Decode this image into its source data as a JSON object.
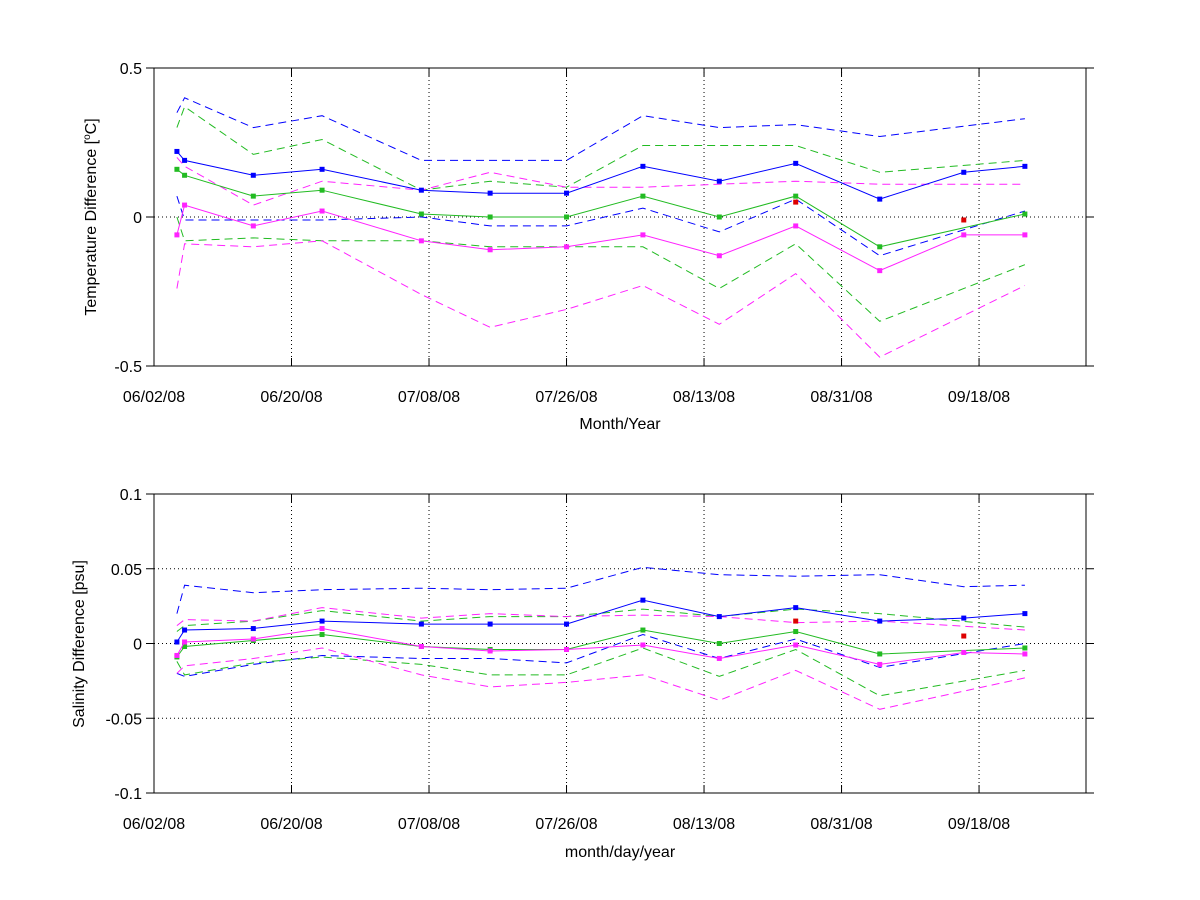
{
  "chart_data": [
    {
      "type": "line",
      "ylabel_main": "Temperature Difference [",
      "ylabel_sup": "o",
      "ylabel_tail": "C]",
      "xlabel": "Month/Year",
      "ylim": [
        -0.5,
        0.5
      ],
      "yticks": [
        -0.5,
        0,
        0.5
      ],
      "ytick_labels": [
        "-0.5",
        "0",
        "0.5"
      ],
      "xlim": [
        "2008-06-02",
        "2008-10-02"
      ],
      "xticks": [
        "2008-06-02",
        "2008-06-20",
        "2008-07-08",
        "2008-07-26",
        "2008-08-13",
        "2008-08-31",
        "2008-09-18"
      ],
      "xtick_labels": [
        "06/02/08",
        "06/20/08",
        "07/08/08",
        "07/26/08",
        "08/13/08",
        "08/31/08",
        "09/18/08"
      ],
      "grid": "dotted",
      "series": [
        {
          "style": "dashed",
          "color": "#0000ff",
          "x": [
            "2008-06-05",
            "2008-06-06",
            "2008-06-15",
            "2008-06-24",
            "2008-07-07",
            "2008-07-16",
            "2008-07-26",
            "2008-08-05",
            "2008-08-15",
            "2008-08-25",
            "2008-09-05",
            "2008-09-24"
          ],
          "y": [
            0.35,
            0.4,
            0.3,
            0.34,
            0.19,
            0.19,
            0.19,
            0.34,
            0.3,
            0.31,
            0.27,
            0.33
          ]
        },
        {
          "style": "dashed",
          "color": "#0000ff",
          "x": [
            "2008-06-05",
            "2008-06-06",
            "2008-06-15",
            "2008-06-24",
            "2008-07-07",
            "2008-07-16",
            "2008-07-26",
            "2008-08-05",
            "2008-08-15",
            "2008-08-25",
            "2008-09-05",
            "2008-09-24"
          ],
          "y": [
            0.07,
            -0.01,
            -0.01,
            -0.01,
            0.0,
            -0.03,
            -0.03,
            0.03,
            -0.05,
            0.06,
            -0.13,
            0.02
          ]
        },
        {
          "style": "dashed",
          "color": "#22bb22",
          "x": [
            "2008-06-05",
            "2008-06-06",
            "2008-06-15",
            "2008-06-24",
            "2008-07-07",
            "2008-07-16",
            "2008-07-26",
            "2008-08-05",
            "2008-08-15",
            "2008-08-25",
            "2008-09-05",
            "2008-09-24"
          ],
          "y": [
            0.3,
            0.37,
            0.21,
            0.26,
            0.09,
            0.12,
            0.1,
            0.24,
            0.24,
            0.24,
            0.15,
            0.19
          ]
        },
        {
          "style": "dashed",
          "color": "#22bb22",
          "x": [
            "2008-06-05",
            "2008-06-06",
            "2008-06-15",
            "2008-06-24",
            "2008-07-07",
            "2008-07-16",
            "2008-07-26",
            "2008-08-05",
            "2008-08-15",
            "2008-08-25",
            "2008-09-05",
            "2008-09-24"
          ],
          "y": [
            0.0,
            -0.08,
            -0.07,
            -0.08,
            -0.08,
            -0.1,
            -0.1,
            -0.1,
            -0.24,
            -0.09,
            -0.35,
            -0.16
          ]
        },
        {
          "style": "dashed",
          "color": "#ff22ff",
          "x": [
            "2008-06-05",
            "2008-06-06",
            "2008-06-15",
            "2008-06-24",
            "2008-07-07",
            "2008-07-16",
            "2008-07-26",
            "2008-08-05",
            "2008-08-15",
            "2008-08-25",
            "2008-09-05",
            "2008-09-24"
          ],
          "y": [
            0.2,
            0.17,
            0.04,
            0.12,
            0.09,
            0.15,
            0.1,
            0.1,
            0.11,
            0.12,
            0.11,
            0.11
          ]
        },
        {
          "style": "dashed",
          "color": "#ff22ff",
          "x": [
            "2008-06-05",
            "2008-06-06",
            "2008-06-15",
            "2008-06-24",
            "2008-07-07",
            "2008-07-16",
            "2008-07-26",
            "2008-08-05",
            "2008-08-15",
            "2008-08-25",
            "2008-09-05",
            "2008-09-24"
          ],
          "y": [
            -0.24,
            -0.09,
            -0.1,
            -0.08,
            -0.26,
            -0.37,
            -0.31,
            -0.23,
            -0.36,
            -0.19,
            -0.47,
            -0.23
          ]
        },
        {
          "style": "solid",
          "color": "#0000ff",
          "markers": true,
          "x": [
            "2008-06-05",
            "2008-06-06",
            "2008-06-15",
            "2008-06-24",
            "2008-07-07",
            "2008-07-16",
            "2008-07-26",
            "2008-08-05",
            "2008-08-15",
            "2008-08-25",
            "2008-09-05",
            "2008-09-16",
            "2008-09-24"
          ],
          "y": [
            0.22,
            0.19,
            0.14,
            0.16,
            0.09,
            0.08,
            0.08,
            0.17,
            0.12,
            0.18,
            0.06,
            0.15,
            0.17
          ]
        },
        {
          "style": "solid",
          "color": "#22bb22",
          "markers": true,
          "x": [
            "2008-06-05",
            "2008-06-06",
            "2008-06-15",
            "2008-06-24",
            "2008-07-07",
            "2008-07-16",
            "2008-07-26",
            "2008-08-05",
            "2008-08-15",
            "2008-08-25",
            "2008-09-05",
            "2008-09-24"
          ],
          "y": [
            0.16,
            0.14,
            0.07,
            0.09,
            0.01,
            0.0,
            0.0,
            0.07,
            0.0,
            0.07,
            -0.1,
            0.01
          ]
        },
        {
          "style": "solid",
          "color": "#ff22ff",
          "markers": true,
          "x": [
            "2008-06-05",
            "2008-06-06",
            "2008-06-15",
            "2008-06-24",
            "2008-07-07",
            "2008-07-16",
            "2008-07-26",
            "2008-08-05",
            "2008-08-15",
            "2008-08-25",
            "2008-09-05",
            "2008-09-16",
            "2008-09-24"
          ],
          "y": [
            -0.06,
            0.04,
            -0.03,
            0.02,
            -0.08,
            -0.11,
            -0.1,
            -0.06,
            -0.13,
            -0.03,
            -0.18,
            -0.06,
            -0.06
          ]
        },
        {
          "style": "markers",
          "color": "#dd0000",
          "x": [
            "2008-08-25",
            "2008-09-16"
          ],
          "y": [
            0.05,
            -0.01
          ]
        }
      ]
    },
    {
      "type": "line",
      "ylabel": "Salinity Difference [psu]",
      "xlabel": "month/day/year",
      "ylim": [
        -0.1,
        0.1
      ],
      "yticks": [
        -0.1,
        -0.05,
        0,
        0.05,
        0.1
      ],
      "ytick_labels": [
        "-0.1",
        "-0.05",
        "0",
        "0.05",
        "0.1"
      ],
      "xlim": [
        "2008-06-02",
        "2008-10-02"
      ],
      "xticks": [
        "2008-06-02",
        "2008-06-20",
        "2008-07-08",
        "2008-07-26",
        "2008-08-13",
        "2008-08-31",
        "2008-09-18"
      ],
      "xtick_labels": [
        "06/02/08",
        "06/20/08",
        "07/08/08",
        "07/26/08",
        "08/13/08",
        "08/31/08",
        "09/18/08"
      ],
      "grid": "dotted",
      "series": [
        {
          "style": "dashed",
          "color": "#0000ff",
          "x": [
            "2008-06-05",
            "2008-06-06",
            "2008-06-15",
            "2008-06-24",
            "2008-07-07",
            "2008-07-16",
            "2008-07-26",
            "2008-08-05",
            "2008-08-15",
            "2008-08-25",
            "2008-09-05",
            "2008-09-16",
            "2008-09-24"
          ],
          "y": [
            0.02,
            0.039,
            0.034,
            0.036,
            0.037,
            0.036,
            0.037,
            0.051,
            0.046,
            0.045,
            0.046,
            0.038,
            0.039
          ]
        },
        {
          "style": "dashed",
          "color": "#0000ff",
          "x": [
            "2008-06-05",
            "2008-06-06",
            "2008-06-15",
            "2008-06-24",
            "2008-07-07",
            "2008-07-16",
            "2008-07-26",
            "2008-08-05",
            "2008-08-15",
            "2008-08-25",
            "2008-09-05",
            "2008-09-24"
          ],
          "y": [
            -0.02,
            -0.022,
            -0.014,
            -0.008,
            -0.01,
            -0.01,
            -0.013,
            0.006,
            -0.01,
            0.003,
            -0.016,
            0.0
          ]
        },
        {
          "style": "dashed",
          "color": "#22bb22",
          "x": [
            "2008-06-05",
            "2008-06-06",
            "2008-06-15",
            "2008-06-24",
            "2008-07-07",
            "2008-07-16",
            "2008-07-26",
            "2008-08-05",
            "2008-08-15",
            "2008-08-25",
            "2008-09-05",
            "2008-09-24"
          ],
          "y": [
            0.008,
            0.012,
            0.015,
            0.022,
            0.015,
            0.018,
            0.018,
            0.023,
            0.018,
            0.023,
            0.02,
            0.011
          ]
        },
        {
          "style": "dashed",
          "color": "#22bb22",
          "x": [
            "2008-06-05",
            "2008-06-06",
            "2008-06-15",
            "2008-06-24",
            "2008-07-07",
            "2008-07-16",
            "2008-07-26",
            "2008-08-05",
            "2008-08-15",
            "2008-08-25",
            "2008-09-05",
            "2008-09-24"
          ],
          "y": [
            -0.012,
            -0.021,
            -0.013,
            -0.009,
            -0.014,
            -0.021,
            -0.021,
            -0.003,
            -0.022,
            -0.004,
            -0.035,
            -0.018
          ]
        },
        {
          "style": "dashed",
          "color": "#ff22ff",
          "x": [
            "2008-06-05",
            "2008-06-06",
            "2008-06-15",
            "2008-06-24",
            "2008-07-07",
            "2008-07-16",
            "2008-07-26",
            "2008-08-05",
            "2008-08-15",
            "2008-08-25",
            "2008-09-05",
            "2008-09-24"
          ],
          "y": [
            0.012,
            0.016,
            0.015,
            0.024,
            0.017,
            0.02,
            0.018,
            0.019,
            0.018,
            0.014,
            0.015,
            0.009
          ]
        },
        {
          "style": "dashed",
          "color": "#ff22ff",
          "x": [
            "2008-06-05",
            "2008-06-06",
            "2008-06-15",
            "2008-06-24",
            "2008-07-07",
            "2008-07-16",
            "2008-07-26",
            "2008-08-05",
            "2008-08-15",
            "2008-08-25",
            "2008-09-05",
            "2008-09-24"
          ],
          "y": [
            -0.02,
            -0.015,
            -0.01,
            -0.003,
            -0.021,
            -0.029,
            -0.026,
            -0.021,
            -0.038,
            -0.018,
            -0.044,
            -0.023
          ]
        },
        {
          "style": "solid",
          "color": "#0000ff",
          "markers": true,
          "x": [
            "2008-06-05",
            "2008-06-06",
            "2008-06-15",
            "2008-06-24",
            "2008-07-07",
            "2008-07-16",
            "2008-07-26",
            "2008-08-05",
            "2008-08-15",
            "2008-08-25",
            "2008-09-05",
            "2008-09-16",
            "2008-09-24"
          ],
          "y": [
            0.001,
            0.009,
            0.01,
            0.015,
            0.013,
            0.013,
            0.013,
            0.029,
            0.018,
            0.024,
            0.015,
            0.017,
            0.02
          ]
        },
        {
          "style": "solid",
          "color": "#22bb22",
          "markers": true,
          "x": [
            "2008-06-05",
            "2008-06-06",
            "2008-06-15",
            "2008-06-24",
            "2008-07-07",
            "2008-07-16",
            "2008-07-26",
            "2008-08-05",
            "2008-08-15",
            "2008-08-25",
            "2008-09-05",
            "2008-09-24"
          ],
          "y": [
            -0.009,
            -0.002,
            0.002,
            0.006,
            -0.002,
            -0.004,
            -0.004,
            0.009,
            0.0,
            0.008,
            -0.007,
            -0.003
          ]
        },
        {
          "style": "solid",
          "color": "#ff22ff",
          "markers": true,
          "x": [
            "2008-06-05",
            "2008-06-06",
            "2008-06-15",
            "2008-06-24",
            "2008-07-07",
            "2008-07-16",
            "2008-07-26",
            "2008-08-05",
            "2008-08-15",
            "2008-08-25",
            "2008-09-05",
            "2008-09-16",
            "2008-09-24"
          ],
          "y": [
            -0.008,
            0.001,
            0.003,
            0.01,
            -0.002,
            -0.005,
            -0.004,
            -0.001,
            -0.01,
            -0.001,
            -0.014,
            -0.006,
            -0.007
          ]
        },
        {
          "style": "markers",
          "color": "#dd0000",
          "x": [
            "2008-08-25",
            "2008-09-16"
          ],
          "y": [
            0.015,
            0.005
          ]
        }
      ]
    }
  ]
}
